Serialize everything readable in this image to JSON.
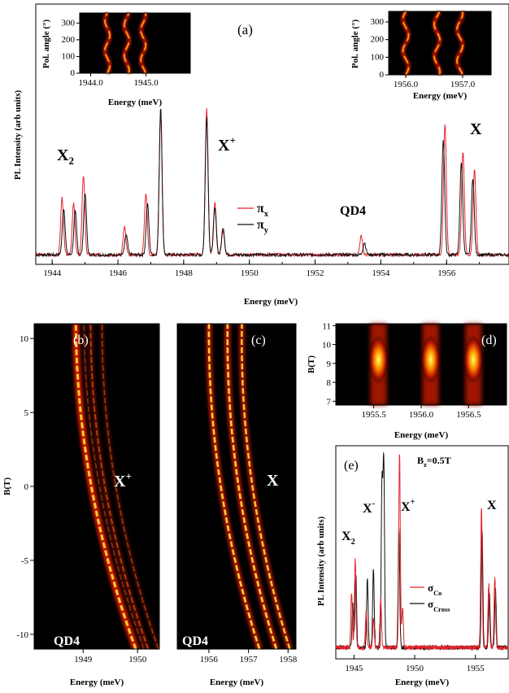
{
  "colors": {
    "red": "#e8222a",
    "black": "#111111",
    "map_hot": "#ffff66",
    "map_bg": "#000000"
  },
  "chart_data": [
    {
      "id": "a",
      "type": "line",
      "panel_label": "(a)",
      "xlabel": "Energy (meV)",
      "ylabel": "PL Intensity (arb units)",
      "xlim": [
        1943.5,
        1957.9
      ],
      "xticks": [
        "1944",
        "1946",
        "1948",
        "1950",
        "1952",
        "1954",
        "1956"
      ],
      "peak_labels": [
        {
          "text": "X",
          "sub": "2",
          "sup": "",
          "x": 1944.6
        },
        {
          "text": "X",
          "sub": "",
          "sup": "+",
          "x": 1948.9
        },
        {
          "text": "QD4",
          "sub": "",
          "sup": "",
          "x": 1952.8
        },
        {
          "text": "X",
          "sub": "",
          "sup": "",
          "x": 1956.8
        }
      ],
      "series": [
        {
          "name": "π",
          "sub": "x",
          "color": "#e8222a",
          "peaks": [
            [
              1944.3,
              0.37
            ],
            [
              1944.65,
              0.33
            ],
            [
              1944.95,
              0.52
            ],
            [
              1946.2,
              0.18
            ],
            [
              1946.85,
              0.4
            ],
            [
              1947.3,
              0.92
            ],
            [
              1948.7,
              0.95
            ],
            [
              1948.95,
              0.34
            ],
            [
              1949.2,
              0.16
            ],
            [
              1953.4,
              0.12
            ],
            [
              1955.95,
              0.85
            ],
            [
              1956.5,
              0.66
            ],
            [
              1956.85,
              0.56
            ]
          ]
        },
        {
          "name": "π",
          "sub": "y",
          "color": "#111111",
          "peaks": [
            [
              1944.35,
              0.3
            ],
            [
              1944.7,
              0.28
            ],
            [
              1945.0,
              0.4
            ],
            [
              1946.25,
              0.13
            ],
            [
              1946.9,
              0.33
            ],
            [
              1947.3,
              0.96
            ],
            [
              1948.7,
              0.89
            ],
            [
              1948.95,
              0.3
            ],
            [
              1949.2,
              0.18
            ],
            [
              1953.5,
              0.08
            ],
            [
              1955.9,
              0.75
            ],
            [
              1956.45,
              0.6
            ],
            [
              1956.8,
              0.5
            ]
          ]
        }
      ]
    },
    {
      "id": "a-inset-left",
      "type": "heatmap",
      "xlabel": "Energy (meV)",
      "ylabel": "Pol. angle (°)",
      "xlim": [
        1943.8,
        1945.8
      ],
      "ylim": [
        0,
        360
      ],
      "xticks": [
        "1944.0",
        "1945.0"
      ],
      "yticks": [
        "0",
        "100",
        "200",
        "300"
      ],
      "lines": [
        1944.3,
        1944.65,
        1944.95
      ]
    },
    {
      "id": "a-inset-right",
      "type": "heatmap",
      "xlabel": "Energy (meV)",
      "ylabel": "Pol. angle (°)",
      "xlim": [
        1955.7,
        1957.5
      ],
      "ylim": [
        0,
        360
      ],
      "xticks": [
        "1956.0",
        "1957.0"
      ],
      "yticks": [
        "0",
        "100",
        "200",
        "300"
      ],
      "lines": [
        1956.0,
        1956.55,
        1956.95
      ]
    },
    {
      "id": "b",
      "type": "heatmap",
      "panel_label": "(b)",
      "ylabel": "B(T)",
      "xlabel": "Energy (meV)",
      "xlim": [
        1948.1,
        1950.4
      ],
      "ylim": [
        -11,
        11
      ],
      "xticks": [
        "1949",
        "1950"
      ],
      "yticks": [
        "10",
        "5",
        "0",
        "-5",
        "-10"
      ],
      "labels": [
        {
          "text": "X",
          "sup": "+"
        },
        {
          "text": "QD4",
          "sup": ""
        }
      ],
      "lines": [
        {
          "e0": 1949.15,
          "slope": -0.05,
          "curv": 0.0022,
          "w": 1.0
        },
        {
          "e0": 1949.4,
          "slope": -0.048,
          "curv": 0.0022,
          "w": 0.4
        },
        {
          "e0": 1949.6,
          "slope": -0.047,
          "curv": 0.0022,
          "w": 0.3
        },
        {
          "e0": 1949.3,
          "slope": -0.05,
          "curv": 0.0022,
          "w": 0.25
        }
      ]
    },
    {
      "id": "c",
      "type": "heatmap",
      "panel_label": "(c)",
      "xlabel": "Energy (meV)",
      "xlim": [
        1955.2,
        1958.2
      ],
      "ylim": [
        -11,
        11
      ],
      "xticks": [
        "1956",
        "1957",
        "1958"
      ],
      "labels": [
        {
          "text": "X",
          "sup": ""
        },
        {
          "text": "QD4",
          "sup": ""
        }
      ],
      "lines": [
        {
          "e0": 1956.3,
          "slope": -0.058,
          "curv": 0.0028,
          "w": 0.8
        },
        {
          "e0": 1956.75,
          "slope": -0.056,
          "curv": 0.0028,
          "w": 0.8
        },
        {
          "e0": 1957.1,
          "slope": -0.055,
          "curv": 0.0028,
          "w": 0.75
        }
      ]
    },
    {
      "id": "d",
      "type": "heatmap",
      "panel_label": "(d)",
      "ylabel": "B(T)",
      "xlabel": "Energy (meV)",
      "xlim": [
        1955.1,
        1956.9
      ],
      "ylim": [
        6.8,
        11.1
      ],
      "xticks": [
        "1955.5",
        "1956.0",
        "1956.5"
      ],
      "yticks": [
        "11",
        "10",
        "9",
        "8",
        "7"
      ],
      "lines": [
        1955.55,
        1956.1,
        1956.55
      ]
    },
    {
      "id": "e",
      "type": "line",
      "panel_label": "(e)",
      "title": "B",
      "title_sub": "z",
      "title_rest": "=0.5T",
      "xlabel": "Energy (meV)",
      "ylabel": "PL Intensity (arb units)",
      "xlim": [
        1943.5,
        1957.7
      ],
      "xticks": [
        "1945",
        "1950",
        "1955"
      ],
      "peak_labels": [
        {
          "text": "X",
          "sub": "2",
          "sup": ""
        },
        {
          "text": "X",
          "sub": "",
          "sup": "-"
        },
        {
          "text": "X",
          "sub": "",
          "sup": "+"
        },
        {
          "text": "X",
          "sub": "",
          "sup": ""
        }
      ],
      "series": [
        {
          "name": "σ",
          "sub": "Co",
          "color": "#e8222a",
          "peaks": [
            [
              1944.8,
              0.28
            ],
            [
              1945.1,
              0.45
            ],
            [
              1946.0,
              0.18
            ],
            [
              1946.6,
              0.15
            ],
            [
              1947.2,
              0.25
            ],
            [
              1948.75,
              1.0
            ],
            [
              1949.0,
              0.2
            ],
            [
              1955.5,
              0.72
            ],
            [
              1956.1,
              0.32
            ],
            [
              1956.6,
              0.36
            ]
          ]
        },
        {
          "name": "σ",
          "sub": "Cross",
          "color": "#111111",
          "peaks": [
            [
              1944.9,
              0.22
            ],
            [
              1945.15,
              0.38
            ],
            [
              1946.1,
              0.35
            ],
            [
              1946.6,
              0.4
            ],
            [
              1947.3,
              0.82
            ],
            [
              1947.45,
              0.94
            ],
            [
              1948.7,
              0.62
            ],
            [
              1955.55,
              0.6
            ],
            [
              1956.15,
              0.28
            ],
            [
              1956.65,
              0.3
            ]
          ]
        }
      ]
    }
  ]
}
